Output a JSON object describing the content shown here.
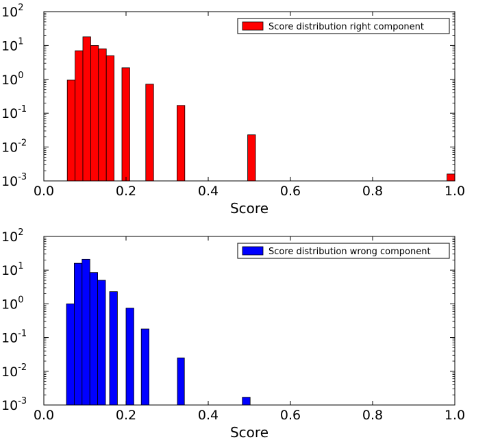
{
  "chart_data": [
    {
      "type": "bar",
      "yscale": "log",
      "title": "",
      "xlabel": "Score",
      "ylabel": "",
      "xlim": [
        0.0,
        1.0
      ],
      "ylim": [
        0.001,
        100
      ],
      "xticks": [
        "0.0",
        "0.2",
        "0.4",
        "0.6",
        "0.8",
        "1.0"
      ],
      "yticks": [
        {
          "base": "10",
          "exp": "-3"
        },
        {
          "base": "10",
          "exp": "-2"
        },
        {
          "base": "10",
          "exp": "-1"
        },
        {
          "base": "10",
          "exp": "0"
        },
        {
          "base": "10",
          "exp": "1"
        },
        {
          "base": "10",
          "exp": "2"
        }
      ],
      "legend": {
        "label": "Score distribution right component",
        "position": "top-right"
      },
      "color": "#ff0000",
      "bars": [
        {
          "x0": 0.057,
          "x1": 0.076,
          "value": 0.95
        },
        {
          "x0": 0.076,
          "x1": 0.095,
          "value": 7.0
        },
        {
          "x0": 0.095,
          "x1": 0.114,
          "value": 18.0
        },
        {
          "x0": 0.114,
          "x1": 0.133,
          "value": 10.0
        },
        {
          "x0": 0.133,
          "x1": 0.152,
          "value": 8.0
        },
        {
          "x0": 0.152,
          "x1": 0.171,
          "value": 5.0
        },
        {
          "x0": 0.19,
          "x1": 0.209,
          "value": 2.2
        },
        {
          "x0": 0.248,
          "x1": 0.267,
          "value": 0.72
        },
        {
          "x0": 0.324,
          "x1": 0.343,
          "value": 0.17
        },
        {
          "x0": 0.496,
          "x1": 0.515,
          "value": 0.023
        },
        {
          "x0": 0.981,
          "x1": 1.0,
          "value": 0.0016
        }
      ]
    },
    {
      "type": "bar",
      "yscale": "log",
      "title": "",
      "xlabel": "Score",
      "ylabel": "",
      "xlim": [
        0.0,
        1.0
      ],
      "ylim": [
        0.001,
        100
      ],
      "xticks": [
        "0.0",
        "0.2",
        "0.4",
        "0.6",
        "0.8",
        "1.0"
      ],
      "yticks": [
        {
          "base": "10",
          "exp": "-3"
        },
        {
          "base": "10",
          "exp": "-2"
        },
        {
          "base": "10",
          "exp": "-1"
        },
        {
          "base": "10",
          "exp": "0"
        },
        {
          "base": "10",
          "exp": "1"
        },
        {
          "base": "10",
          "exp": "2"
        }
      ],
      "legend": {
        "label": "Score distribution wrong component",
        "position": "top-right"
      },
      "color": "#0000ff",
      "bars": [
        {
          "x0": 0.055,
          "x1": 0.074,
          "value": 1.0
        },
        {
          "x0": 0.074,
          "x1": 0.093,
          "value": 16.0
        },
        {
          "x0": 0.093,
          "x1": 0.112,
          "value": 21.0
        },
        {
          "x0": 0.112,
          "x1": 0.131,
          "value": 8.5
        },
        {
          "x0": 0.131,
          "x1": 0.15,
          "value": 5.0
        },
        {
          "x0": 0.16,
          "x1": 0.179,
          "value": 2.3
        },
        {
          "x0": 0.2,
          "x1": 0.219,
          "value": 0.75
        },
        {
          "x0": 0.237,
          "x1": 0.256,
          "value": 0.18
        },
        {
          "x0": 0.325,
          "x1": 0.342,
          "value": 0.025
        },
        {
          "x0": 0.483,
          "x1": 0.502,
          "value": 0.0017
        }
      ]
    }
  ]
}
